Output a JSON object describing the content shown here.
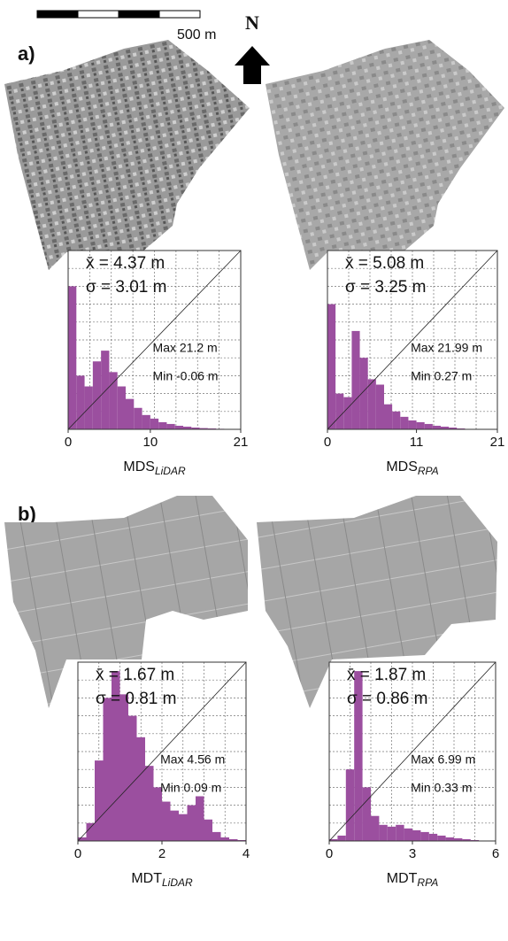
{
  "scale_bar": "500 m",
  "north": "N",
  "panel_labels": [
    "a)",
    "b)"
  ],
  "chart_data": [
    {
      "type": "histogram",
      "bins": [
        0,
        1,
        2,
        3,
        4,
        5,
        6,
        7,
        8,
        9,
        10,
        11,
        12,
        13,
        14,
        15,
        16,
        17,
        18,
        19,
        20,
        21
      ],
      "values": [
        80,
        30,
        24,
        38,
        44,
        32,
        24,
        17,
        12,
        8,
        6,
        4,
        3,
        2,
        1.5,
        1,
        0.7,
        0.5,
        0.3,
        0.2,
        0.1
      ],
      "color": "#9b4f9f",
      "xlim": [
        0,
        21
      ],
      "xticks": [
        0,
        10,
        21
      ],
      "ylim": [
        0,
        100
      ],
      "grid": true,
      "annotations": [
        "x̄ = 4.37 m",
        "σ = 3.01 m",
        "Max 21.2 m",
        "Min  -0.06 m"
      ],
      "xlabel": "MDS",
      "xlabel_sub": "LiDAR"
    },
    {
      "type": "histogram",
      "bins": [
        0,
        1,
        2,
        3,
        4,
        5,
        6,
        7,
        8,
        9,
        10,
        11,
        12,
        13,
        14,
        15,
        16,
        17,
        18,
        19,
        20,
        21
      ],
      "values": [
        70,
        20,
        18,
        55,
        40,
        28,
        25,
        14,
        10,
        7,
        5,
        4,
        3,
        2,
        1.5,
        1,
        0.5,
        0.2,
        0.1,
        0,
        0
      ],
      "color": "#9b4f9f",
      "xlim": [
        0,
        21
      ],
      "xticks": [
        0,
        11,
        21
      ],
      "ylim": [
        0,
        100
      ],
      "grid": true,
      "annotations": [
        "x̄ = 5.08 m",
        "σ = 3.25 m",
        "Max 21.99 m",
        "Min 0.27 m"
      ],
      "xlabel": "MDS",
      "xlabel_sub": "RPA"
    },
    {
      "type": "histogram",
      "bins": [
        0,
        0.2,
        0.4,
        0.6,
        0.8,
        1.0,
        1.2,
        1.4,
        1.6,
        1.8,
        2.0,
        2.2,
        2.4,
        2.6,
        2.8,
        3.0,
        3.2,
        3.4,
        3.6,
        3.8,
        4.0
      ],
      "values": [
        2,
        10,
        45,
        80,
        95,
        82,
        70,
        58,
        42,
        30,
        22,
        17,
        15,
        20,
        25,
        12,
        5,
        2,
        1,
        0.5
      ],
      "color": "#9b4f9f",
      "xlim": [
        0,
        4
      ],
      "xticks": [
        0,
        2,
        4
      ],
      "ylim": [
        0,
        100
      ],
      "grid": true,
      "annotations": [
        "x̄ = 1.67 m",
        "σ = 0.81 m",
        "Max 4.56 m",
        "Min 0.09 m"
      ],
      "xlabel": "MDT",
      "xlabel_sub": "LiDAR"
    },
    {
      "type": "histogram",
      "bins": [
        0,
        0.3,
        0.6,
        0.9,
        1.2,
        1.5,
        1.8,
        2.1,
        2.4,
        2.7,
        3.0,
        3.3,
        3.6,
        3.9,
        4.2,
        4.5,
        4.8,
        5.1,
        5.4,
        5.7,
        6.0
      ],
      "values": [
        1,
        3,
        40,
        95,
        30,
        14,
        9,
        8,
        9,
        7,
        6,
        5,
        4,
        3,
        2,
        1.5,
        1,
        0.5,
        0.2,
        0.1
      ],
      "color": "#9b4f9f",
      "xlim": [
        0,
        6
      ],
      "xticks": [
        0,
        3,
        6
      ],
      "ylim": [
        0,
        100
      ],
      "grid": true,
      "annotations": [
        "x̄ = 1.87 m",
        "σ = 0.86 m",
        "Max 6.99 m",
        "Min 0.33 m"
      ],
      "xlabel": "MDT",
      "xlabel_sub": "RPA"
    }
  ]
}
